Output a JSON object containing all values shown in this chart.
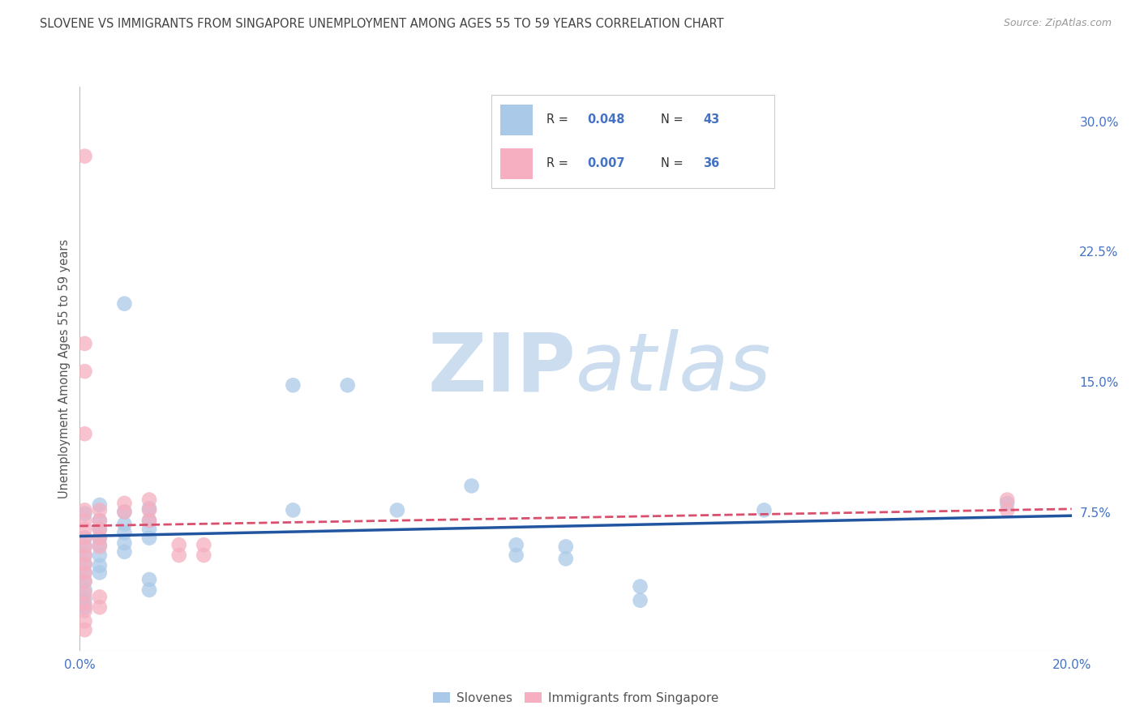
{
  "title": "SLOVENE VS IMMIGRANTS FROM SINGAPORE UNEMPLOYMENT AMONG AGES 55 TO 59 YEARS CORRELATION CHART",
  "source": "Source: ZipAtlas.com",
  "ylabel": "Unemployment Among Ages 55 to 59 years",
  "xlim": [
    0.0,
    0.2
  ],
  "ylim": [
    -0.005,
    0.32
  ],
  "xticks": [
    0.0,
    0.04,
    0.08,
    0.12,
    0.16,
    0.2
  ],
  "xtick_labels": [
    "0.0%",
    "",
    "",
    "",
    "",
    "20.0%"
  ],
  "yticks_right": [
    0.0,
    0.075,
    0.15,
    0.225,
    0.3
  ],
  "ytick_labels_right": [
    "",
    "7.5%",
    "15.0%",
    "22.5%",
    "30.0%"
  ],
  "blue_R": "0.048",
  "blue_N": "43",
  "pink_R": "0.007",
  "pink_N": "36",
  "blue_color": "#aac9e8",
  "pink_color": "#f5afc0",
  "blue_line_color": "#2155a0",
  "pink_line_color": "#d94f6e",
  "blue_scatter": [
    [
      0.001,
      0.074
    ],
    [
      0.001,
      0.06
    ],
    [
      0.001,
      0.055
    ],
    [
      0.001,
      0.05
    ],
    [
      0.001,
      0.045
    ],
    [
      0.001,
      0.04
    ],
    [
      0.001,
      0.035
    ],
    [
      0.001,
      0.03
    ],
    [
      0.001,
      0.025
    ],
    [
      0.001,
      0.02
    ],
    [
      0.004,
      0.079
    ],
    [
      0.004,
      0.07
    ],
    [
      0.004,
      0.065
    ],
    [
      0.004,
      0.06
    ],
    [
      0.004,
      0.056
    ],
    [
      0.004,
      0.05
    ],
    [
      0.004,
      0.044
    ],
    [
      0.004,
      0.04
    ],
    [
      0.009,
      0.195
    ],
    [
      0.009,
      0.075
    ],
    [
      0.009,
      0.068
    ],
    [
      0.009,
      0.063
    ],
    [
      0.009,
      0.057
    ],
    [
      0.009,
      0.052
    ],
    [
      0.014,
      0.077
    ],
    [
      0.014,
      0.07
    ],
    [
      0.014,
      0.065
    ],
    [
      0.014,
      0.06
    ],
    [
      0.014,
      0.036
    ],
    [
      0.014,
      0.03
    ],
    [
      0.043,
      0.148
    ],
    [
      0.043,
      0.076
    ],
    [
      0.054,
      0.148
    ],
    [
      0.064,
      0.076
    ],
    [
      0.079,
      0.09
    ],
    [
      0.088,
      0.056
    ],
    [
      0.088,
      0.05
    ],
    [
      0.098,
      0.055
    ],
    [
      0.098,
      0.048
    ],
    [
      0.113,
      0.032
    ],
    [
      0.113,
      0.024
    ],
    [
      0.138,
      0.076
    ],
    [
      0.187,
      0.08
    ]
  ],
  "pink_scatter": [
    [
      0.001,
      0.28
    ],
    [
      0.001,
      0.172
    ],
    [
      0.001,
      0.156
    ],
    [
      0.001,
      0.12
    ],
    [
      0.001,
      0.076
    ],
    [
      0.001,
      0.07
    ],
    [
      0.001,
      0.065
    ],
    [
      0.001,
      0.06
    ],
    [
      0.001,
      0.055
    ],
    [
      0.001,
      0.05
    ],
    [
      0.001,
      0.045
    ],
    [
      0.001,
      0.04
    ],
    [
      0.001,
      0.035
    ],
    [
      0.001,
      0.028
    ],
    [
      0.001,
      0.022
    ],
    [
      0.001,
      0.018
    ],
    [
      0.001,
      0.012
    ],
    [
      0.001,
      0.007
    ],
    [
      0.004,
      0.076
    ],
    [
      0.004,
      0.07
    ],
    [
      0.004,
      0.065
    ],
    [
      0.004,
      0.06
    ],
    [
      0.004,
      0.055
    ],
    [
      0.004,
      0.026
    ],
    [
      0.004,
      0.02
    ],
    [
      0.009,
      0.08
    ],
    [
      0.009,
      0.075
    ],
    [
      0.014,
      0.082
    ],
    [
      0.014,
      0.076
    ],
    [
      0.014,
      0.07
    ],
    [
      0.02,
      0.056
    ],
    [
      0.02,
      0.05
    ],
    [
      0.025,
      0.056
    ],
    [
      0.025,
      0.05
    ],
    [
      0.187,
      0.082
    ],
    [
      0.187,
      0.076
    ]
  ],
  "background_color": "#ffffff",
  "grid_color": "#cccccc",
  "watermark_zip": "ZIP",
  "watermark_atlas": "atlas",
  "watermark_color": "#ccddf0"
}
